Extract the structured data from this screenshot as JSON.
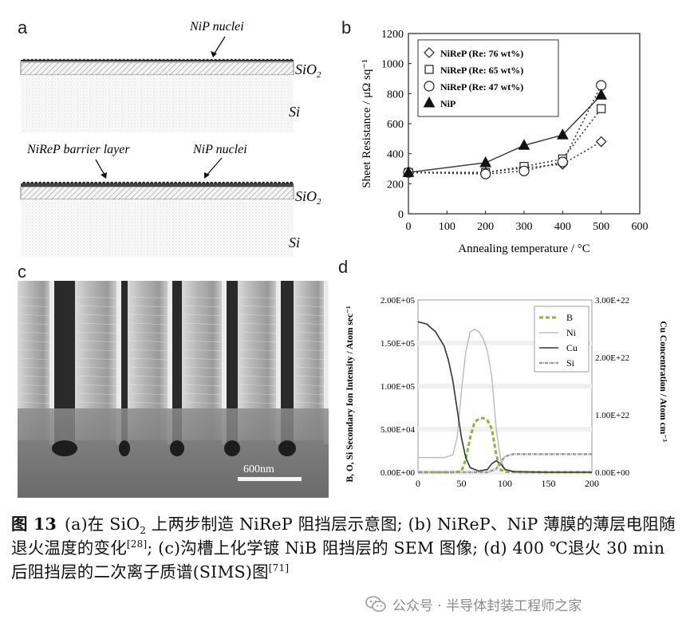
{
  "panel_a": {
    "letter": "a",
    "top": {
      "nucleus_label": "NiP nuclei",
      "sio2_label_main": "SiO",
      "sio2_label_sub": "2",
      "si_label": "Si"
    },
    "bottom": {
      "barrier_label": "NiReP barrier layer",
      "nucleus_label": "NiP nuclei",
      "sio2_label_main": "SiO",
      "sio2_label_sub": "2",
      "si_label": "Si"
    }
  },
  "panel_b": {
    "letter": "b",
    "chart_data": {
      "type": "line",
      "xlabel": "Annealing temperature / °C",
      "ylabel": "Sheet Resistance / μΩ sq⁻¹",
      "xlim": [
        0,
        600
      ],
      "ylim": [
        0,
        1200
      ],
      "xticks": [
        0,
        100,
        200,
        300,
        400,
        500,
        600
      ],
      "yticks": [
        0,
        200,
        400,
        600,
        800,
        1000,
        1200
      ],
      "legend_position": "top-left",
      "series": [
        {
          "name": "NiReP (Re: 76 wt%)",
          "marker": "diamond",
          "style": "dotted",
          "x": [
            0,
            200,
            300,
            400,
            500
          ],
          "y": [
            275,
            275,
            305,
            330,
            480
          ]
        },
        {
          "name": "NiReP (Re: 65 wt%)",
          "marker": "square",
          "style": "dotted",
          "x": [
            0,
            200,
            300,
            400,
            500
          ],
          "y": [
            275,
            275,
            315,
            365,
            700
          ]
        },
        {
          "name": "NiReP (Re: 47 wt%)",
          "marker": "circle",
          "style": "dotted",
          "x": [
            0,
            200,
            300,
            400,
            500
          ],
          "y": [
            275,
            265,
            285,
            345,
            855
          ]
        },
        {
          "name": "NiP",
          "marker": "triangle",
          "style": "solid",
          "x": [
            0,
            200,
            300,
            400,
            500
          ],
          "y": [
            275,
            340,
            455,
            525,
            790
          ]
        }
      ]
    }
  },
  "panel_c": {
    "letter": "c",
    "scale_label": "600nm"
  },
  "panel_d": {
    "letter": "d",
    "chart_data": {
      "type": "line",
      "xlabel": "",
      "ylabel_left": "B, O, Si Secondary Ion Intensity / Atom sec⁻¹",
      "ylabel_right": "Cu Concentration / Atom cm⁻³",
      "xlim": [
        0,
        200
      ],
      "xticks": [
        0,
        50,
        100,
        150,
        200
      ],
      "ylim_left": [
        0,
        200000
      ],
      "yticks_left": [
        "0.00E+00",
        "5.00E+04",
        "1.00E+05",
        "1.50E+05",
        "2.00E+05"
      ],
      "ylim_right": [
        0,
        3e+22
      ],
      "yticks_right": [
        "0.00E+00",
        "1.00E+22",
        "2.00E+22",
        "3.00E+22"
      ],
      "legend_position": "top-right",
      "series": [
        {
          "name": "B",
          "color": "#8db53c",
          "style": "dashed",
          "x": [
            0,
            40,
            50,
            55,
            60,
            65,
            70,
            75,
            80,
            85,
            90,
            95,
            100,
            120,
            160,
            200
          ],
          "y": [
            0,
            0,
            1000,
            15000,
            40000,
            58000,
            62000,
            63000,
            60000,
            50000,
            20000,
            3000,
            500,
            0,
            0,
            0
          ]
        },
        {
          "name": "Ni",
          "color": "#bdbdbd",
          "style": "solid",
          "x": [
            0,
            30,
            40,
            45,
            50,
            55,
            60,
            65,
            70,
            75,
            80,
            85,
            90,
            95,
            100,
            110,
            150,
            200
          ],
          "y": [
            17000,
            17000,
            20000,
            40000,
            95000,
            140000,
            163000,
            166000,
            163000,
            155000,
            140000,
            110000,
            50000,
            15000,
            3000,
            0,
            0,
            0
          ]
        },
        {
          "name": "Cu",
          "color": "#333333",
          "style": "solid",
          "axis": "right",
          "x": [
            0,
            10,
            20,
            30,
            35,
            40,
            45,
            50,
            55,
            60,
            70,
            80,
            85,
            90,
            95,
            100,
            110,
            150,
            200
          ],
          "y": [
            2.62e+22,
            2.58e+22,
            2.45e+22,
            2.2e+22,
            1.95e+22,
            1.6e+22,
            1.1e+22,
            6e+21,
            2.5e+21,
            8e+20,
            2e+20,
            5e+20,
            1.5e+21,
            2e+21,
            1.5e+21,
            5e+20,
            1e+20,
            0,
            0
          ]
        },
        {
          "name": "Si",
          "color": "#9a9a9a",
          "style": "dash-dot",
          "x": [
            0,
            80,
            90,
            95,
            100,
            105,
            110,
            150,
            200
          ],
          "y": [
            0,
            0,
            4000,
            12000,
            18000,
            20000,
            21000,
            21000,
            21000
          ]
        }
      ]
    }
  },
  "caption": {
    "figure_label": "图 13",
    "part_1a": "(a)在 SiO",
    "part_1b": "2",
    "part_1c": " 上两步制造 NiReP 阻挡层示意图; (b) NiReP、NiP 薄膜的薄层电阻随退火温度的变化",
    "ref_1": "[28]",
    "part_2": "; (c)沟槽上化学镀 NiB 阻挡层的 SEM 图像; (d) 400 ℃退火 30 min 后阻挡层的二次离子质谱(SIMS)图",
    "ref_2": "[71]"
  },
  "watermark": {
    "text": "公众号 · 半导体封装工程师之家",
    "icon": "wechat-icon"
  }
}
